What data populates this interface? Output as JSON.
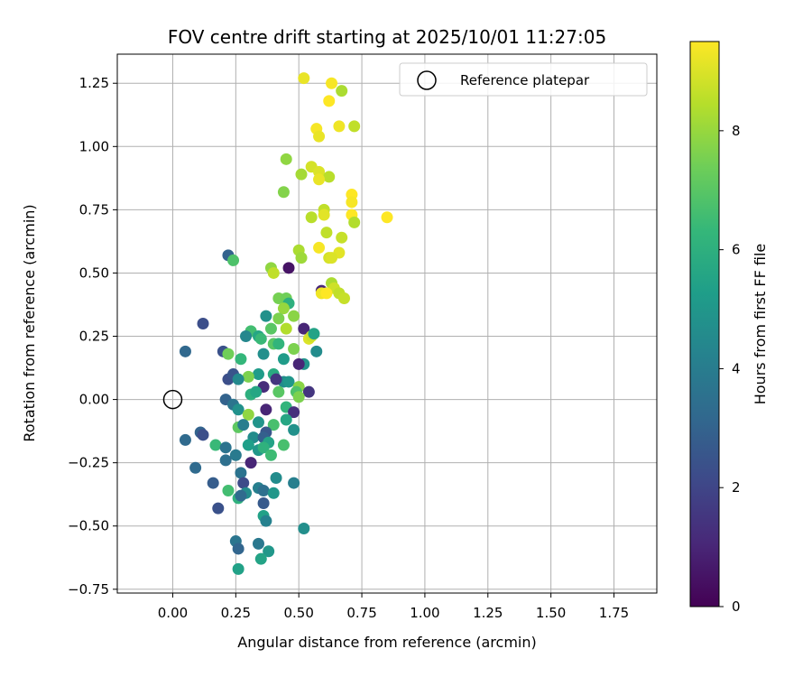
{
  "chart_data": {
    "type": "scatter",
    "title": "FOV centre drift starting at 2025/10/01 11:27:05",
    "xlabel": "Angular distance from reference (arcmin)",
    "ylabel": "Rotation from reference (arcmin)",
    "xlim": [
      -0.22,
      1.92
    ],
    "ylim": [
      -0.765,
      1.365
    ],
    "xticks": [
      0.0,
      0.25,
      0.5,
      0.75,
      1.0,
      1.25,
      1.5,
      1.75
    ],
    "xtick_labels": [
      "0.00",
      "0.25",
      "0.50",
      "0.75",
      "1.00",
      "1.25",
      "1.50",
      "1.75"
    ],
    "yticks": [
      -0.75,
      -0.5,
      -0.25,
      0.0,
      0.25,
      0.5,
      0.75,
      1.0,
      1.25
    ],
    "ytick_labels": [
      "−0.75",
      "−0.50",
      "−0.25",
      "0.00",
      "0.25",
      "0.50",
      "0.75",
      "1.00",
      "1.25"
    ],
    "grid": true,
    "legend": {
      "position": "top-right",
      "entries": [
        "Reference platepar"
      ]
    },
    "reference_point": {
      "label": "Reference platepar",
      "x": 0.0,
      "y": 0.0
    },
    "colorbar": {
      "label": "Hours from first FF file",
      "range": [
        0,
        9.5
      ],
      "ticks": [
        0,
        2,
        4,
        6,
        8
      ],
      "tick_labels": [
        "0",
        "2",
        "4",
        "6",
        "8"
      ],
      "colormap": [
        "#440154",
        "#482878",
        "#3e4989",
        "#31688e",
        "#26828e",
        "#1f9e89",
        "#35b779",
        "#6ece58",
        "#b5de2b",
        "#fde725"
      ]
    },
    "points": [
      [
        0.52,
        1.27,
        9.2
      ],
      [
        0.63,
        1.25,
        9.4
      ],
      [
        0.67,
        1.22,
        8.3
      ],
      [
        0.62,
        1.18,
        9.5
      ],
      [
        0.66,
        1.08,
        9.3
      ],
      [
        0.72,
        1.08,
        8.6
      ],
      [
        0.57,
        1.07,
        9.4
      ],
      [
        0.58,
        1.04,
        9.2
      ],
      [
        0.45,
        0.95,
        7.9
      ],
      [
        0.55,
        0.92,
        8.9
      ],
      [
        0.58,
        0.9,
        9.0
      ],
      [
        0.51,
        0.89,
        8.2
      ],
      [
        0.62,
        0.88,
        8.5
      ],
      [
        0.58,
        0.87,
        9.2
      ],
      [
        0.44,
        0.82,
        7.7
      ],
      [
        0.71,
        0.81,
        9.5
      ],
      [
        0.71,
        0.78,
        9.4
      ],
      [
        0.6,
        0.75,
        8.6
      ],
      [
        0.6,
        0.73,
        9.1
      ],
      [
        0.71,
        0.73,
        9.5
      ],
      [
        0.55,
        0.72,
        8.5
      ],
      [
        0.85,
        0.72,
        9.5
      ],
      [
        0.72,
        0.7,
        8.4
      ],
      [
        0.61,
        0.66,
        8.6
      ],
      [
        0.67,
        0.64,
        8.7
      ],
      [
        0.58,
        0.6,
        9.4
      ],
      [
        0.5,
        0.59,
        8.3
      ],
      [
        0.66,
        0.58,
        9.1
      ],
      [
        0.62,
        0.56,
        8.9
      ],
      [
        0.63,
        0.56,
        9.0
      ],
      [
        0.51,
        0.56,
        8.1
      ],
      [
        0.22,
        0.57,
        3.0
      ],
      [
        0.24,
        0.55,
        6.8
      ],
      [
        0.46,
        0.52,
        0.5
      ],
      [
        0.39,
        0.52,
        7.9
      ],
      [
        0.4,
        0.5,
        8.6
      ],
      [
        0.63,
        0.46,
        8.3
      ],
      [
        0.64,
        0.44,
        8.8
      ],
      [
        0.59,
        0.43,
        1.0
      ],
      [
        0.59,
        0.42,
        9.3
      ],
      [
        0.61,
        0.42,
        9.5
      ],
      [
        0.66,
        0.42,
        8.6
      ],
      [
        0.68,
        0.4,
        8.7
      ],
      [
        0.42,
        0.4,
        7.5
      ],
      [
        0.45,
        0.4,
        7.4
      ],
      [
        0.46,
        0.38,
        6.0
      ],
      [
        0.44,
        0.36,
        8.0
      ],
      [
        0.12,
        0.3,
        2.3
      ],
      [
        0.37,
        0.33,
        4.8
      ],
      [
        0.42,
        0.32,
        7.6
      ],
      [
        0.48,
        0.33,
        7.8
      ],
      [
        0.39,
        0.28,
        7.0
      ],
      [
        0.52,
        0.28,
        1.0
      ],
      [
        0.45,
        0.28,
        8.4
      ],
      [
        0.31,
        0.27,
        6.6
      ],
      [
        0.29,
        0.25,
        4.4
      ],
      [
        0.34,
        0.25,
        5.6
      ],
      [
        0.35,
        0.24,
        6.4
      ],
      [
        0.54,
        0.24,
        9.0
      ],
      [
        0.55,
        0.25,
        8.8
      ],
      [
        0.56,
        0.26,
        5.5
      ],
      [
        0.4,
        0.22,
        7.0
      ],
      [
        0.42,
        0.22,
        6.2
      ],
      [
        0.48,
        0.2,
        7.6
      ],
      [
        0.57,
        0.19,
        4.6
      ],
      [
        0.2,
        0.19,
        2.4
      ],
      [
        0.22,
        0.18,
        7.4
      ],
      [
        0.36,
        0.18,
        4.7
      ],
      [
        0.05,
        0.19,
        3.2
      ],
      [
        0.44,
        0.16,
        5.2
      ],
      [
        0.52,
        0.14,
        4.9
      ],
      [
        0.27,
        0.16,
        6.3
      ],
      [
        0.5,
        0.14,
        1.0
      ],
      [
        0.4,
        0.1,
        5.8
      ],
      [
        0.34,
        0.1,
        5.2
      ],
      [
        0.22,
        0.08,
        2.3
      ],
      [
        0.24,
        0.1,
        2.5
      ],
      [
        0.3,
        0.09,
        7.6
      ],
      [
        0.44,
        0.07,
        4.6
      ],
      [
        0.46,
        0.07,
        5.0
      ],
      [
        0.26,
        0.08,
        4.5
      ],
      [
        0.41,
        0.08,
        1.5
      ],
      [
        0.36,
        0.05,
        1.2
      ],
      [
        0.42,
        0.03,
        7.0
      ],
      [
        0.5,
        0.05,
        7.8
      ],
      [
        0.54,
        0.03,
        1.5
      ],
      [
        0.49,
        0.03,
        6.8
      ],
      [
        0.5,
        0.01,
        7.6
      ],
      [
        0.21,
        0.0,
        3.0
      ],
      [
        0.24,
        -0.02,
        3.7
      ],
      [
        0.26,
        -0.04,
        4.8
      ],
      [
        0.31,
        0.02,
        6.0
      ],
      [
        0.33,
        0.03,
        5.6
      ],
      [
        0.37,
        -0.04,
        1.0
      ],
      [
        0.45,
        -0.03,
        6.2
      ],
      [
        0.48,
        -0.05,
        1.3
      ],
      [
        0.45,
        -0.08,
        5.6
      ],
      [
        0.3,
        -0.06,
        7.9
      ],
      [
        0.34,
        -0.09,
        4.9
      ],
      [
        0.26,
        -0.11,
        7.1
      ],
      [
        0.28,
        -0.1,
        4.0
      ],
      [
        0.4,
        -0.1,
        6.7
      ],
      [
        0.48,
        -0.12,
        4.8
      ],
      [
        0.37,
        -0.13,
        2.6
      ],
      [
        0.11,
        -0.13,
        3.0
      ],
      [
        0.12,
        -0.14,
        2.3
      ],
      [
        0.05,
        -0.16,
        3.3
      ],
      [
        0.32,
        -0.15,
        4.6
      ],
      [
        0.36,
        -0.15,
        2.9
      ],
      [
        0.3,
        -0.18,
        5.3
      ],
      [
        0.38,
        -0.17,
        5.5
      ],
      [
        0.44,
        -0.18,
        6.7
      ],
      [
        0.17,
        -0.18,
        6.4
      ],
      [
        0.21,
        -0.19,
        3.6
      ],
      [
        0.34,
        -0.2,
        5.0
      ],
      [
        0.36,
        -0.19,
        6.1
      ],
      [
        0.25,
        -0.22,
        3.9
      ],
      [
        0.39,
        -0.22,
        6.5
      ],
      [
        0.21,
        -0.24,
        3.5
      ],
      [
        0.31,
        -0.25,
        1.0
      ],
      [
        0.09,
        -0.27,
        3.3
      ],
      [
        0.27,
        -0.29,
        3.6
      ],
      [
        0.41,
        -0.31,
        4.6
      ],
      [
        0.16,
        -0.33,
        2.8
      ],
      [
        0.28,
        -0.33,
        2.2
      ],
      [
        0.48,
        -0.33,
        4.1
      ],
      [
        0.22,
        -0.36,
        6.6
      ],
      [
        0.34,
        -0.35,
        4.1
      ],
      [
        0.36,
        -0.36,
        3.5
      ],
      [
        0.29,
        -0.37,
        4.6
      ],
      [
        0.4,
        -0.37,
        5.0
      ],
      [
        0.26,
        -0.39,
        6.1
      ],
      [
        0.27,
        -0.38,
        3.3
      ],
      [
        0.36,
        -0.41,
        2.7
      ],
      [
        0.18,
        -0.43,
        2.4
      ],
      [
        0.36,
        -0.46,
        5.4
      ],
      [
        0.37,
        -0.48,
        4.2
      ],
      [
        0.52,
        -0.51,
        4.7
      ],
      [
        0.25,
        -0.56,
        3.7
      ],
      [
        0.34,
        -0.57,
        3.8
      ],
      [
        0.26,
        -0.59,
        3.1
      ],
      [
        0.38,
        -0.6,
        5.0
      ],
      [
        0.35,
        -0.63,
        5.5
      ],
      [
        0.26,
        -0.67,
        5.4
      ]
    ]
  }
}
